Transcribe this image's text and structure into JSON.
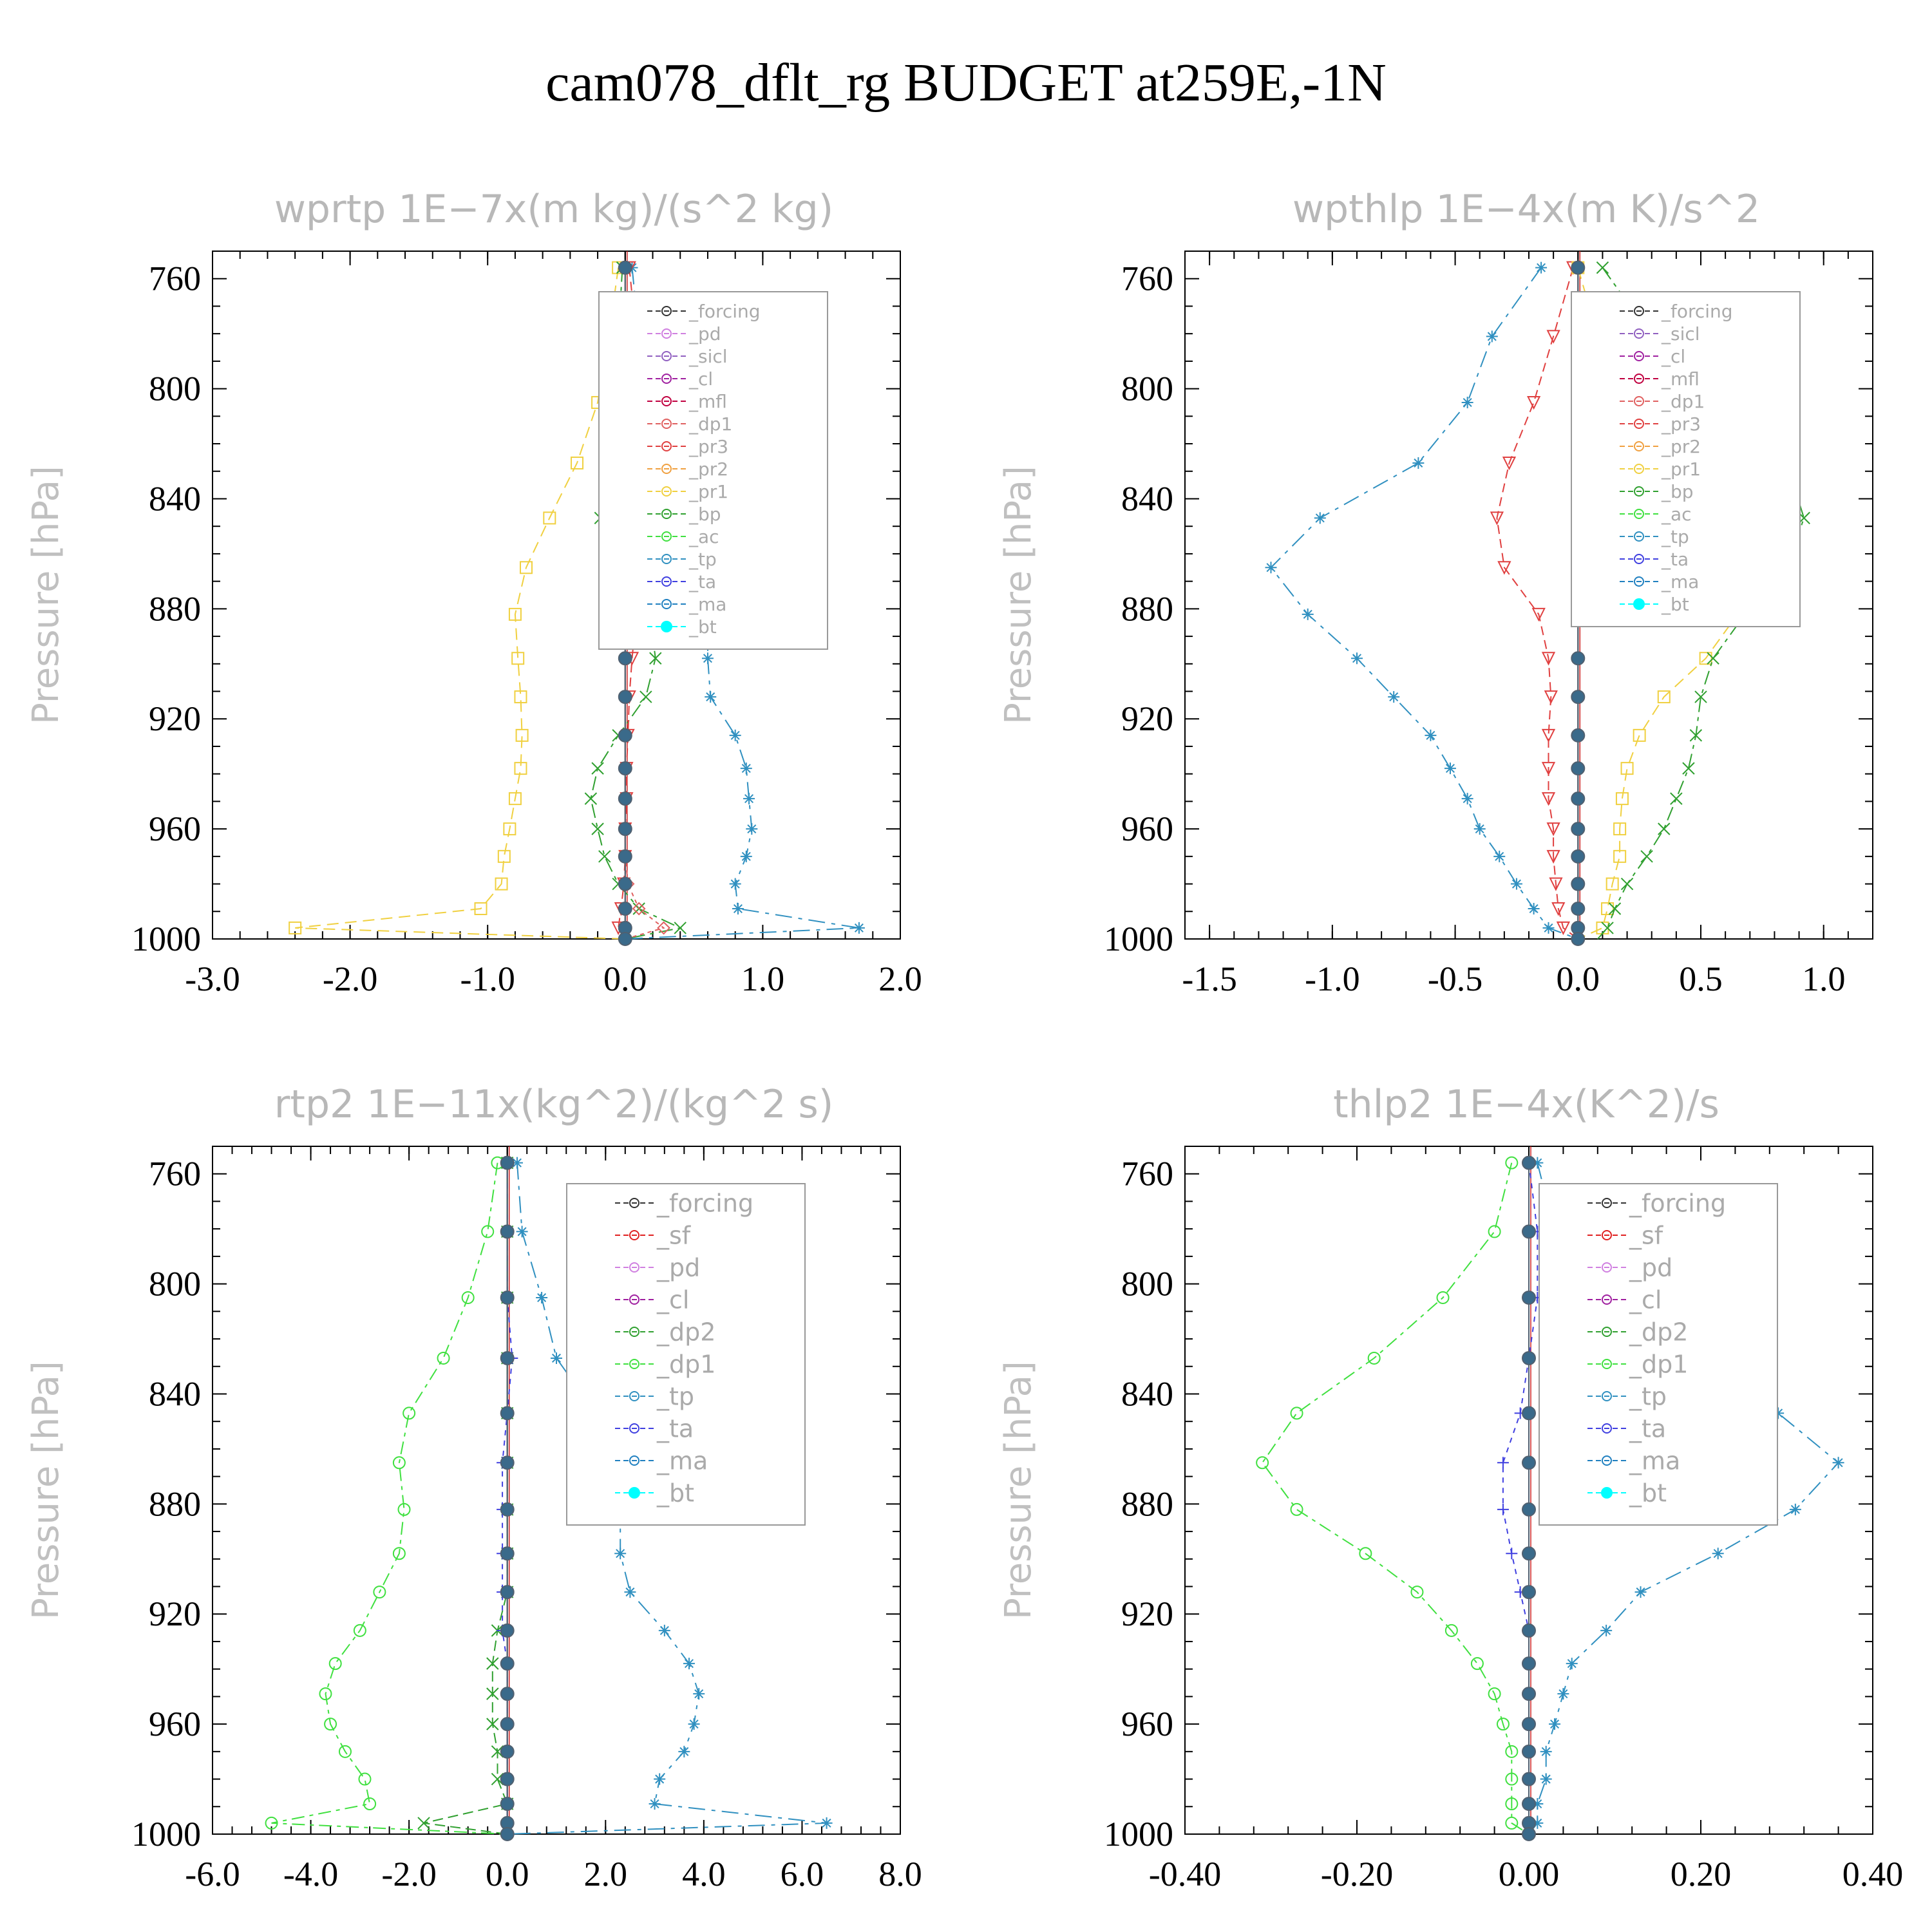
{
  "title": "cam078_dflt_rg  BUDGET at259E,-1N",
  "colors": {
    "forcing": "#333333",
    "pd": "#d080e0",
    "sicl": "#9060c0",
    "cl": "#a020a0",
    "mfl": "#c00040",
    "dp1": "#e06060",
    "pr3": "#e04040",
    "pr2": "#f0a040",
    "pr1": "#f0d040",
    "bp": "#30a030",
    "ac": "#40e040",
    "tp": "#3090c0",
    "ta": "#4040e0",
    "ma": "#2080c0",
    "bt": "#00ffff",
    "sf": "#e02020",
    "dp2": "#30a030"
  },
  "chart_data": [
    {
      "type": "line",
      "title": "wprtp   1E−7x(m kg)/(s^2 kg)",
      "xlabel": "",
      "ylabel": "Pressure [hPa]",
      "xlim": [
        -3.0,
        2.0
      ],
      "ylim": [
        1000,
        750
      ],
      "xticks": [
        "-3.0",
        "-2.0",
        "-1.0",
        "0.0",
        "1.0",
        "2.0"
      ],
      "yticks": [
        "760",
        "800",
        "840",
        "880",
        "920",
        "960",
        "1000"
      ],
      "legend": "top-right",
      "legend_entries": [
        "_forcing",
        "_pd",
        "_sicl",
        "_cl",
        "_mfl",
        "_dp1",
        "_pr3",
        "_pr2",
        "_pr1",
        "_bp",
        "_ac",
        "_tp",
        "_ta",
        "_ma",
        "_bt"
      ],
      "pressure": [
        756,
        781,
        805,
        827,
        847,
        865,
        882,
        898,
        912,
        926,
        938,
        949,
        960,
        970,
        980,
        989,
        996,
        1000
      ],
      "series": [
        {
          "name": "_pr1",
          "key": "pr1",
          "values": [
            -0.05,
            -0.12,
            -0.2,
            -0.35,
            -0.55,
            -0.72,
            -0.8,
            -0.78,
            -0.76,
            -0.75,
            -0.76,
            -0.8,
            -0.84,
            -0.88,
            -0.9,
            -1.05,
            -2.4,
            0.0
          ]
        },
        {
          "name": "_bp",
          "key": "bp",
          "values": [
            -0.02,
            -0.05,
            -0.1,
            -0.15,
            -0.18,
            -0.02,
            0.18,
            0.22,
            0.15,
            -0.05,
            -0.2,
            -0.25,
            -0.2,
            -0.15,
            -0.05,
            0.1,
            0.4,
            0.0
          ]
        },
        {
          "name": "_tp",
          "key": "tp",
          "values": [
            0.05,
            0.1,
            0.2,
            0.35,
            0.55,
            0.6,
            0.6,
            0.6,
            0.62,
            0.8,
            0.88,
            0.9,
            0.92,
            0.88,
            0.8,
            0.82,
            1.7,
            0.0
          ]
        },
        {
          "name": "_pr3",
          "key": "pr3",
          "values": [
            0.03,
            0.08,
            0.12,
            0.12,
            0.12,
            0.1,
            0.08,
            0.05,
            0.03,
            0.02,
            0.01,
            0.01,
            0.0,
            0.0,
            -0.01,
            -0.03,
            -0.05,
            0.0
          ]
        },
        {
          "name": "_dp1",
          "key": "dp1",
          "values": [
            0.0,
            0.0,
            0.0,
            0.0,
            0.0,
            0.0,
            0.0,
            0.0,
            0.0,
            0.0,
            0.0,
            0.0,
            0.0,
            0.0,
            0.02,
            0.1,
            0.28,
            0.0
          ]
        },
        {
          "name": "_bt",
          "key": "bt",
          "values": [
            0.0,
            0.0,
            0.0,
            0.0,
            0.0,
            0.0,
            0.0,
            0.0,
            0.0,
            0.0,
            0.0,
            0.0,
            0.0,
            0.0,
            0.0,
            0.0,
            0.0,
            0.0
          ]
        }
      ]
    },
    {
      "type": "line",
      "title": "wpthlp   1E−4x(m K)/s^2",
      "xlabel": "",
      "ylabel": "Pressure [hPa]",
      "xlim": [
        -1.6,
        1.2
      ],
      "ylim": [
        1000,
        750
      ],
      "xticks": [
        "-1.5",
        "-1.0",
        "-0.5",
        "0.0",
        "0.5",
        "1.0"
      ],
      "yticks": [
        "760",
        "800",
        "840",
        "880",
        "920",
        "960",
        "1000"
      ],
      "legend": "top-right",
      "legend_entries": [
        "_forcing",
        "_sicl",
        "_cl",
        "_mfl",
        "_dp1",
        "_pr3",
        "_pr2",
        "_pr1",
        "_bp",
        "_ac",
        "_tp",
        "_ta",
        "_ma",
        "_bt"
      ],
      "pressure": [
        756,
        781,
        805,
        827,
        847,
        865,
        882,
        898,
        912,
        926,
        938,
        949,
        960,
        970,
        980,
        989,
        996,
        1000
      ],
      "series": [
        {
          "name": "_tp",
          "key": "tp",
          "values": [
            -0.15,
            -0.35,
            -0.45,
            -0.65,
            -1.05,
            -1.25,
            -1.1,
            -0.9,
            -0.75,
            -0.6,
            -0.52,
            -0.45,
            -0.4,
            -0.32,
            -0.25,
            -0.18,
            -0.12,
            0.0
          ]
        },
        {
          "name": "_pr3",
          "key": "pr3",
          "values": [
            -0.02,
            -0.1,
            -0.18,
            -0.28,
            -0.33,
            -0.3,
            -0.16,
            -0.12,
            -0.11,
            -0.12,
            -0.12,
            -0.12,
            -0.1,
            -0.1,
            -0.09,
            -0.08,
            -0.06,
            0.0
          ]
        },
        {
          "name": "_pr1",
          "key": "pr1",
          "values": [
            0.0,
            0.08,
            0.15,
            0.35,
            0.5,
            0.7,
            0.65,
            0.52,
            0.35,
            0.25,
            0.2,
            0.18,
            0.17,
            0.17,
            0.14,
            0.12,
            0.1,
            0.0
          ]
        },
        {
          "name": "_bp",
          "key": "bp",
          "values": [
            0.1,
            0.3,
            0.6,
            0.85,
            0.92,
            0.85,
            0.68,
            0.55,
            0.5,
            0.48,
            0.45,
            0.4,
            0.35,
            0.28,
            0.2,
            0.15,
            0.12,
            0.08
          ]
        },
        {
          "name": "_bt",
          "key": "bt",
          "values": [
            0.0,
            0.0,
            0.0,
            0.0,
            0.0,
            0.0,
            0.0,
            0.0,
            0.0,
            0.0,
            0.0,
            0.0,
            0.0,
            0.0,
            0.0,
            0.0,
            0.0,
            0.0
          ]
        }
      ]
    },
    {
      "type": "line",
      "title": "rtp2   1E−11x(kg^2)/(kg^2 s)",
      "xlabel": "",
      "ylabel": "Pressure [hPa]",
      "xlim": [
        -6.0,
        8.0
      ],
      "ylim": [
        1000,
        750
      ],
      "xticks": [
        "-6.0",
        "-4.0",
        "-2.0",
        "0.0",
        "2.0",
        "4.0",
        "6.0",
        "8.0"
      ],
      "yticks": [
        "760",
        "800",
        "840",
        "880",
        "920",
        "960",
        "1000"
      ],
      "legend": "top-right",
      "legend_entries": [
        "_forcing",
        "_sf",
        "_pd",
        "_cl",
        "_dp2",
        "_dp1",
        "_tp",
        "_ta",
        "_ma",
        "_bt"
      ],
      "pressure": [
        756,
        781,
        805,
        827,
        847,
        865,
        882,
        898,
        912,
        926,
        938,
        949,
        960,
        970,
        980,
        989,
        996,
        1000
      ],
      "series": [
        {
          "name": "_dp1",
          "key": "ac",
          "values": [
            -0.2,
            -0.4,
            -0.8,
            -1.3,
            -2.0,
            -2.2,
            -2.1,
            -2.2,
            -2.6,
            -3.0,
            -3.5,
            -3.7,
            -3.6,
            -3.3,
            -2.9,
            -2.8,
            -4.8,
            0.0
          ]
        },
        {
          "name": "_tp",
          "key": "tp",
          "values": [
            0.2,
            0.3,
            0.7,
            1.0,
            1.8,
            2.4,
            2.3,
            2.3,
            2.5,
            3.2,
            3.7,
            3.9,
            3.8,
            3.6,
            3.1,
            3.0,
            6.5,
            0.0
          ]
        },
        {
          "name": "_dp2",
          "key": "dp2",
          "values": [
            0.0,
            0.0,
            0.0,
            0.0,
            0.0,
            0.0,
            0.0,
            0.0,
            0.0,
            -0.2,
            -0.3,
            -0.3,
            -0.3,
            -0.2,
            -0.2,
            0.0,
            -1.7,
            0.0
          ]
        },
        {
          "name": "_ta",
          "key": "ta",
          "values": [
            0.0,
            0.0,
            0.0,
            0.1,
            0.0,
            -0.1,
            -0.1,
            -0.1,
            -0.1,
            -0.1,
            0.0,
            0.0,
            0.0,
            0.0,
            0.0,
            0.0,
            0.0,
            0.0
          ]
        },
        {
          "name": "_bt",
          "key": "bt",
          "values": [
            0.0,
            0.0,
            0.0,
            0.0,
            0.0,
            0.0,
            0.0,
            0.0,
            0.0,
            0.0,
            0.0,
            0.0,
            0.0,
            0.0,
            0.0,
            0.0,
            0.0,
            0.0
          ]
        }
      ]
    },
    {
      "type": "line",
      "title": "thlp2   1E−4x(K^2)/s",
      "xlabel": "",
      "ylabel": "Pressure [hPa]",
      "xlim": [
        -0.4,
        0.4
      ],
      "ylim": [
        1000,
        750
      ],
      "xticks": [
        "-0.40",
        "-0.20",
        "0.00",
        "0.20",
        "0.40"
      ],
      "yticks": [
        "760",
        "800",
        "840",
        "880",
        "920",
        "960",
        "1000"
      ],
      "legend": "top-right",
      "legend_entries": [
        "_forcing",
        "_sf",
        "_pd",
        "_cl",
        "_dp2",
        "_dp1",
        "_tp",
        "_ta",
        "_ma",
        "_bt"
      ],
      "pressure": [
        756,
        781,
        805,
        827,
        847,
        865,
        882,
        898,
        912,
        926,
        938,
        949,
        960,
        970,
        980,
        989,
        996,
        1000
      ],
      "series": [
        {
          "name": "_dp1",
          "key": "ac",
          "values": [
            -0.02,
            -0.04,
            -0.1,
            -0.18,
            -0.27,
            -0.31,
            -0.27,
            -0.19,
            -0.13,
            -0.09,
            -0.06,
            -0.04,
            -0.03,
            -0.02,
            -0.02,
            -0.02,
            -0.02,
            0.0
          ]
        },
        {
          "name": "_tp",
          "key": "tp",
          "values": [
            0.01,
            0.03,
            0.08,
            0.18,
            0.29,
            0.36,
            0.31,
            0.22,
            0.13,
            0.09,
            0.05,
            0.04,
            0.03,
            0.02,
            0.02,
            0.01,
            0.01,
            0.0
          ]
        },
        {
          "name": "_ta",
          "key": "ta",
          "values": [
            0.0,
            0.01,
            0.01,
            0.0,
            -0.01,
            -0.03,
            -0.03,
            -0.02,
            -0.01,
            0.0,
            0.0,
            0.0,
            0.0,
            0.0,
            0.0,
            0.0,
            0.0,
            0.0
          ]
        },
        {
          "name": "_bt",
          "key": "bt",
          "values": [
            0.0,
            0.0,
            0.0,
            0.0,
            0.0,
            0.0,
            0.0,
            0.0,
            0.0,
            0.0,
            0.0,
            0.0,
            0.0,
            0.0,
            0.0,
            0.0,
            0.0,
            0.0
          ]
        }
      ]
    }
  ]
}
